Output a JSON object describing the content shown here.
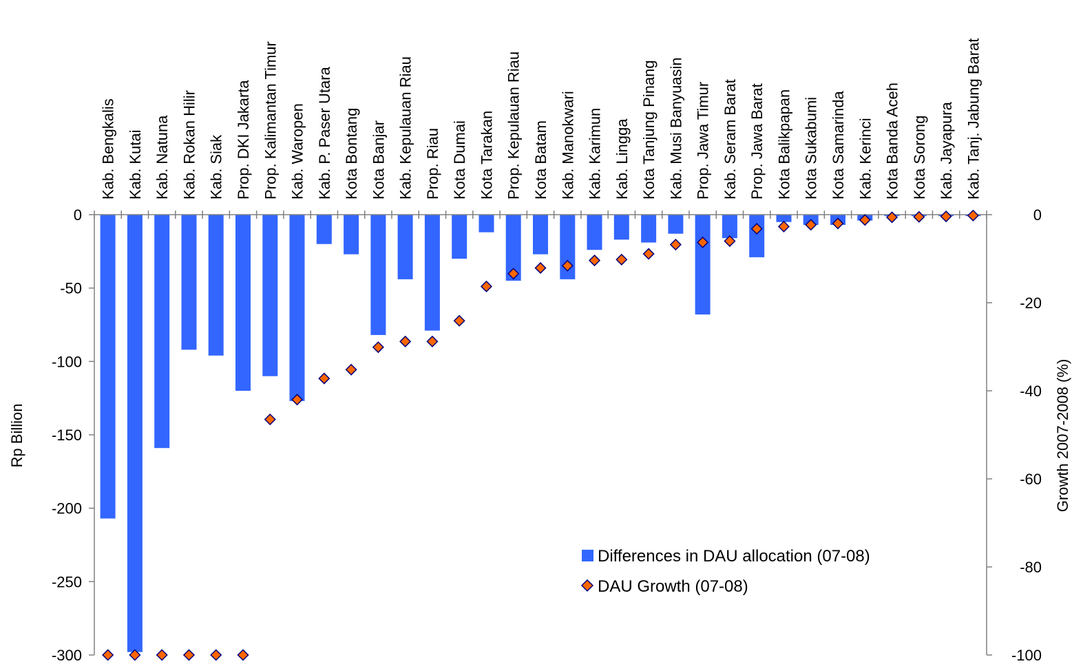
{
  "chart_data": {
    "type": "bar",
    "categories": [
      "Kab. Bengkalis",
      "Kab. Kutai",
      "Kab. Natuna",
      "Kab. Rokan Hilir",
      "Kab. Siak",
      "Prop. DKI Jakarta",
      "Prop. Kalimantan Timur",
      "Kab. Waropen",
      "Kab. P. Paser Utara",
      "Kota Bontang",
      "Kota Banjar",
      "Kab. Kepulauan Riau",
      "Prop. Riau",
      "Kota Dumai",
      "Kota Tarakan",
      "Prop. Kepulauan Riau",
      "Kota Batam",
      "Kab. Manokwari",
      "Kab. Karimun",
      "Kab. Lingga",
      "Kota Tanjung Pinang",
      "Kab. Musi Banyuasin",
      "Prop. Jawa Timur",
      "Kab. Seram Barat",
      "Prop. Jawa Barat",
      "Kota Balikpapan",
      "Kota Sukabumi",
      "Kota Samarinda",
      "Kab. Kerinci",
      "Kota Banda Aceh",
      "Kota Sorong",
      "Kab. Jayapura",
      "Kab. Tanj. Jabung Barat"
    ],
    "series": [
      {
        "name": "Differences in DAU allocation (07-08)",
        "type": "bar",
        "axis": "left",
        "color": "#3366ff",
        "values": [
          -207,
          -298,
          -159,
          -92,
          -96,
          -120,
          -110,
          -127,
          -20,
          -27,
          -82,
          -44,
          -79,
          -30,
          -12,
          -45,
          -27,
          -44,
          -24,
          -17,
          -19,
          -13,
          -68,
          -16,
          -29,
          -5,
          -7,
          -7,
          -4,
          -1,
          -1,
          -1,
          -1
        ]
      },
      {
        "name": "DAU Growth (07-08)",
        "type": "scatter",
        "marker": "diamond",
        "axis": "right",
        "color": "#ff6600",
        "edge_color": "#000080",
        "values": [
          -100,
          -100,
          -100,
          -100,
          -100,
          -100,
          -46.5,
          -42,
          -37.2,
          -35.2,
          -30.1,
          -28.8,
          -28.8,
          -24.1,
          -16.3,
          -13.4,
          -12.1,
          -11.6,
          -10.4,
          -10.2,
          -8.9,
          -6.8,
          -6.3,
          -6.0,
          -3.2,
          -2.7,
          -2.3,
          -2.0,
          -1.2,
          -0.6,
          -0.5,
          -0.4,
          -0.2
        ]
      }
    ],
    "ylabel": "Rp Billion",
    "y2label": "Growth 2007-2008 (%)",
    "ylim": [
      -300,
      0
    ],
    "y2lim": [
      -100,
      0
    ],
    "yticks": [
      "0",
      "-50",
      "-100",
      "-150",
      "-200",
      "-250",
      "-300"
    ],
    "y2ticks": [
      "0",
      "-20",
      "-40",
      "-60",
      "-80",
      "-100"
    ],
    "ytick_values": [
      0,
      -50,
      -100,
      -150,
      -200,
      -250,
      -300
    ],
    "y2tick_values": [
      0,
      -20,
      -40,
      -60,
      -80,
      -100
    ],
    "legend_position": "lower-right",
    "grid": false
  }
}
